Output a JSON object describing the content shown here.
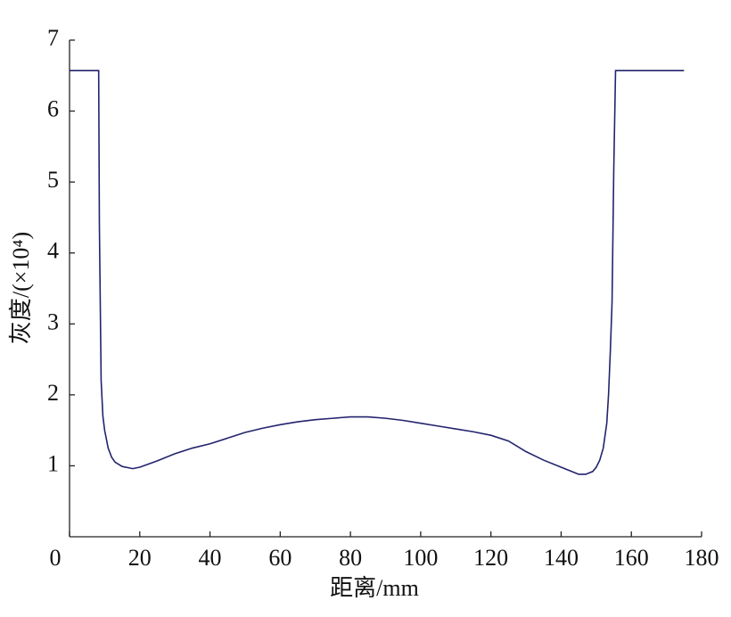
{
  "chart_data": {
    "type": "line",
    "x_label": "距离/mm",
    "y_label": "灰度/(×10⁴)",
    "x": [
      0,
      8.3,
      8.5,
      9,
      9.5,
      10,
      11,
      12,
      13,
      15,
      18,
      20,
      25,
      30,
      35,
      40,
      45,
      50,
      55,
      60,
      65,
      70,
      75,
      80,
      85,
      90,
      95,
      100,
      105,
      110,
      115,
      120,
      125,
      130,
      135,
      140,
      143,
      145,
      147,
      149,
      150,
      151,
      152,
      153,
      153.5,
      154,
      154.5,
      155,
      155.5,
      165,
      175
    ],
    "series": [
      {
        "name": "灰度",
        "color": "#23236e",
        "values": [
          6.57,
          6.57,
          4.4,
          2.2,
          1.7,
          1.5,
          1.25,
          1.12,
          1.05,
          0.99,
          0.96,
          0.98,
          1.07,
          1.17,
          1.25,
          1.31,
          1.39,
          1.47,
          1.53,
          1.58,
          1.62,
          1.65,
          1.67,
          1.69,
          1.69,
          1.67,
          1.64,
          1.6,
          1.56,
          1.52,
          1.48,
          1.43,
          1.35,
          1.2,
          1.08,
          0.98,
          0.92,
          0.88,
          0.88,
          0.92,
          0.98,
          1.08,
          1.25,
          1.6,
          2.0,
          2.6,
          3.3,
          5.2,
          6.57,
          6.57,
          6.57
        ]
      }
    ],
    "xlim": [
      0,
      180
    ],
    "xticks": [
      0,
      20,
      40,
      60,
      80,
      100,
      120,
      140,
      160,
      180
    ],
    "ylim": [
      0,
      7
    ],
    "yticks": [
      1,
      2,
      3,
      4,
      5,
      6,
      7
    ]
  }
}
